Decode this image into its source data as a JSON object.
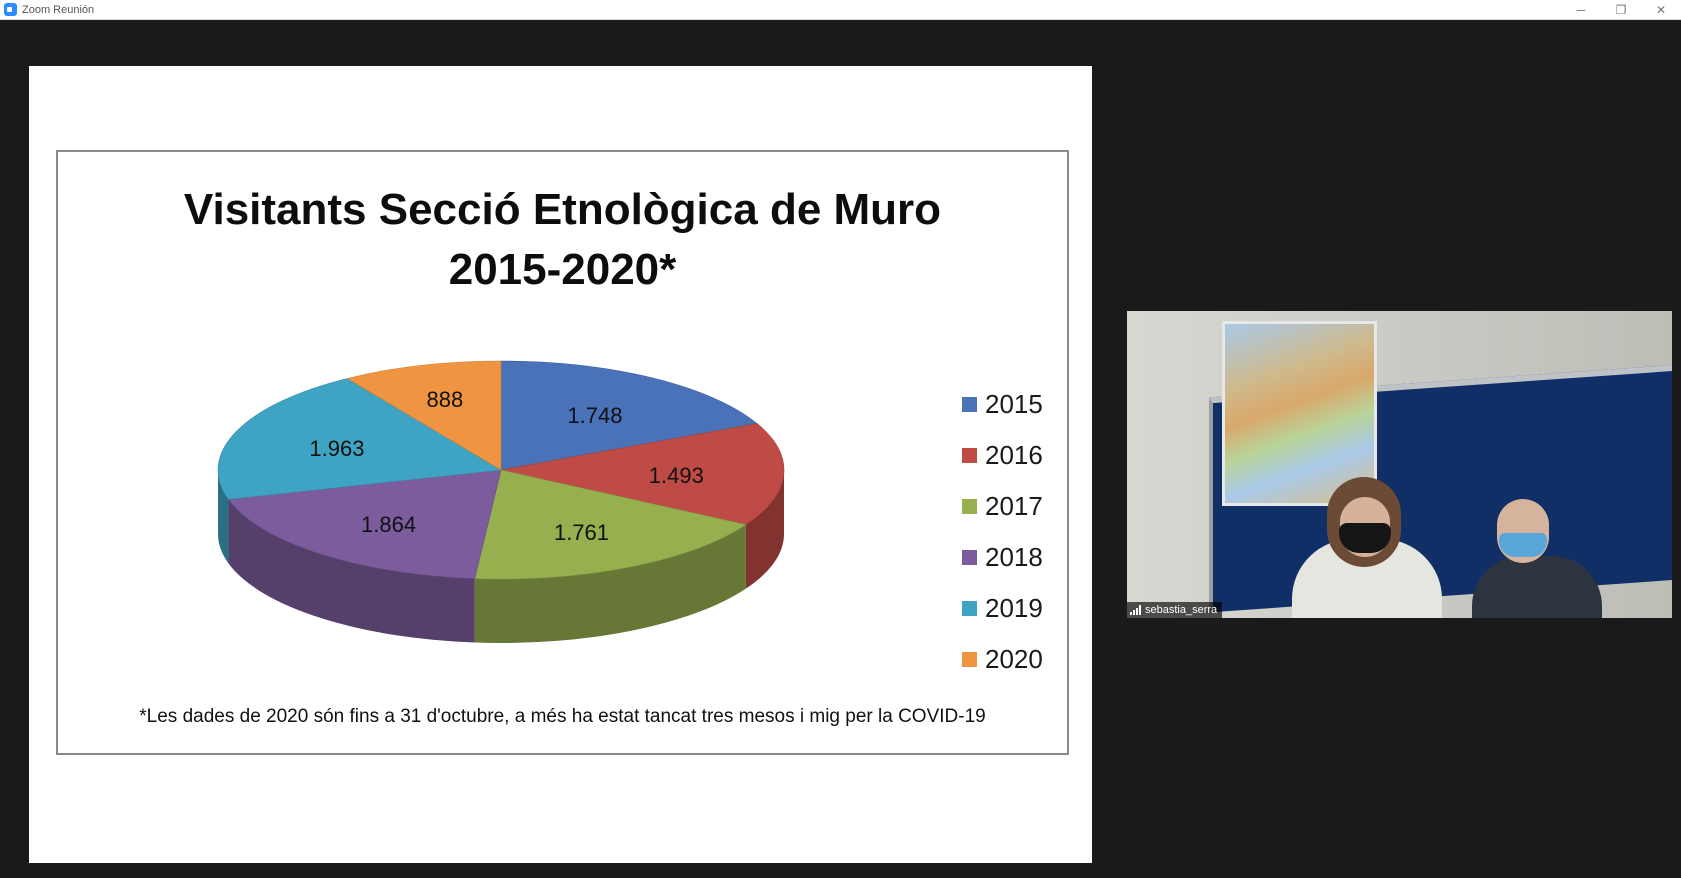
{
  "window": {
    "title": "Zoom Reunión",
    "controls": {
      "minimize": "─",
      "restore": "❐",
      "close": "✕"
    }
  },
  "slide": {
    "title_line1": "Visitants Secció Etnològica de Muro",
    "title_line2": "2015-2020*",
    "footnote": "*Les dades de 2020 són fins a 31 d'octubre, a més ha estat tancat tres mesos i mig per la COVID-19"
  },
  "chart_data": {
    "type": "pie",
    "title": "Visitants Secció Etnològica de Muro 2015-2020*",
    "labels": [
      "2015",
      "2016",
      "2017",
      "2018",
      "2019",
      "2020"
    ],
    "values": [
      1748,
      1493,
      1761,
      1864,
      1963,
      888
    ],
    "data_labels": [
      "1.748",
      "1.493",
      "1.761",
      "1.864",
      "1.963",
      "888"
    ],
    "colors": [
      "#4a72b8",
      "#bf4b47",
      "#97b04f",
      "#7d5c9e",
      "#3fa3c3",
      "#ef9440"
    ],
    "legend_position": "right",
    "style": "3d"
  },
  "participant": {
    "name": "sebastia_serra"
  }
}
